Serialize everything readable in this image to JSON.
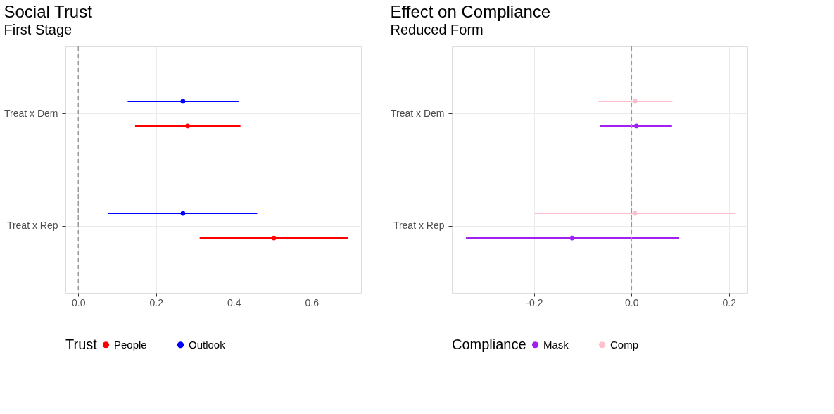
{
  "chart_data": [
    {
      "type": "scatter",
      "title": "Social Trust",
      "subtitle": "First Stage",
      "orientation": "horizontal",
      "categories": [
        "Treat x Dem",
        "Treat x Rep"
      ],
      "legend_title": "Trust",
      "legend": "bottom",
      "grid": true,
      "marker": "circle",
      "xlim": [
        -0.033,
        0.727
      ],
      "xticks": [
        {
          "value": 0,
          "label": "0.0"
        },
        0.2,
        0.4,
        0.6
      ],
      "series": [
        {
          "name": "People",
          "color": "#ff0000",
          "values": [
            0.281,
            0.503
          ],
          "errors": [
            [
              0.146,
              0.417
            ],
            [
              0.312,
              0.693
            ]
          ]
        },
        {
          "name": "Outlook",
          "color": "#0000ff",
          "values": [
            0.269,
            0.269
          ],
          "errors": [
            [
              0.127,
              0.412
            ],
            [
              0.077,
              0.46
            ]
          ]
        }
      ],
      "ref_lines": [
        {
          "axis": "x",
          "value": 0,
          "color": "#999999",
          "line_style": "dashed"
        }
      ]
    },
    {
      "type": "scatter",
      "title": "Effect on Compliance",
      "subtitle": "Reduced Form",
      "orientation": "horizontal",
      "categories": [
        "Treat x Dem",
        "Treat x Rep"
      ],
      "legend_title": "Compliance",
      "legend": "bottom",
      "grid": true,
      "marker": "circle",
      "xlim": [
        -0.369,
        0.238
      ],
      "xticks": [
        -0.2,
        {
          "value": 0,
          "label": "0.0"
        },
        0.2
      ],
      "series": [
        {
          "name": "Mask",
          "color": "#a020f0",
          "values": [
            0.01,
            -0.122
          ],
          "errors": [
            [
              -0.064,
              0.083
            ],
            [
              -0.34,
              0.098
            ]
          ]
        },
        {
          "name": "Comp",
          "color": "#ffc0cb",
          "values": [
            0.007,
            0.007
          ],
          "errors": [
            [
              -0.069,
              0.084
            ],
            [
              -0.199,
              0.214
            ]
          ]
        }
      ],
      "ref_lines": [
        {
          "axis": "x",
          "value": 0,
          "color": "#999999",
          "line_style": "dashed"
        }
      ]
    }
  ]
}
